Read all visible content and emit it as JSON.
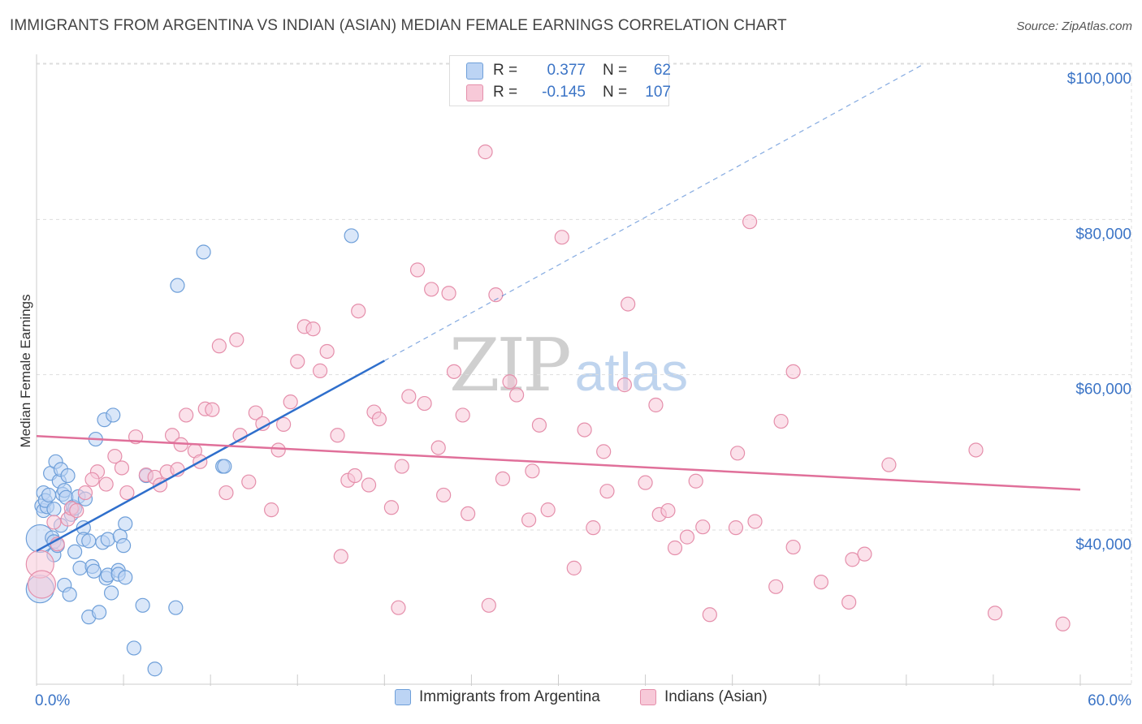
{
  "header": {
    "title": "IMMIGRANTS FROM ARGENTINA VS INDIAN (ASIAN) MEDIAN FEMALE EARNINGS CORRELATION CHART",
    "source": "Source: ZipAtlas.com"
  },
  "watermark": {
    "zip": "ZIP",
    "atlas": "atlas"
  },
  "correlation_legend": {
    "rows": [
      {
        "r_label": "R =",
        "r_value": "0.377",
        "n_label": "N =",
        "n_value": "62"
      },
      {
        "r_label": "R =",
        "r_value": "-0.145",
        "n_label": "N =",
        "n_value": "107"
      }
    ]
  },
  "colors": {
    "blue_fill": "#bcd4f4",
    "blue_stroke": "#6e9fd9",
    "blue_line": "#2f6fcc",
    "pink_fill": "#f7c9d8",
    "pink_stroke": "#e58fab",
    "pink_line": "#e0709a",
    "axis_text": "#3b74c6",
    "grid": "#dddddd"
  },
  "chart_data": {
    "type": "scatter",
    "title": "IMMIGRANTS FROM ARGENTINA VS INDIAN (ASIAN) MEDIAN FEMALE EARNINGS CORRELATION CHART",
    "xlabel": "",
    "ylabel": "Median Female Earnings",
    "xlim": [
      0,
      60
    ],
    "ylim": [
      20000,
      102000
    ],
    "x_tick_labels": [
      "0.0%",
      "60.0%"
    ],
    "y_ticks": [
      {
        "value": 40000,
        "label": "$40,000"
      },
      {
        "value": 60000,
        "label": "$60,000"
      },
      {
        "value": 80000,
        "label": "$80,000"
      },
      {
        "value": 100000,
        "label": "$100,000"
      }
    ],
    "series": [
      {
        "name": "Immigrants from Argentina",
        "color": "blue",
        "r": 0.377,
        "n": 62,
        "trend": {
          "x0": 0,
          "y0": 37300,
          "x1": 20,
          "y1": 61800,
          "dashed_to_x": 51,
          "dashed_to_y": 100000
        },
        "points": [
          [
            0.2,
            38900,
            "L"
          ],
          [
            0.2,
            32400,
            "L"
          ],
          [
            0.3,
            43100
          ],
          [
            0.4,
            42500
          ],
          [
            0.4,
            44800
          ],
          [
            0.6,
            43000
          ],
          [
            0.5,
            43800
          ],
          [
            0.7,
            44500
          ],
          [
            0.8,
            47300
          ],
          [
            0.9,
            39000
          ],
          [
            1.0,
            38500
          ],
          [
            1.0,
            36800
          ],
          [
            1.0,
            42700
          ],
          [
            1.1,
            48800
          ],
          [
            1.2,
            38000
          ],
          [
            1.3,
            46300
          ],
          [
            1.4,
            40600
          ],
          [
            1.4,
            47800
          ],
          [
            1.5,
            44600
          ],
          [
            1.6,
            45100
          ],
          [
            1.6,
            32900
          ],
          [
            1.7,
            44200
          ],
          [
            1.8,
            47000
          ],
          [
            1.9,
            31700
          ],
          [
            2.0,
            42000
          ],
          [
            2.1,
            43000
          ],
          [
            2.2,
            42800
          ],
          [
            2.2,
            37200
          ],
          [
            2.4,
            44300
          ],
          [
            2.5,
            35100
          ],
          [
            2.7,
            40300
          ],
          [
            2.7,
            38800
          ],
          [
            2.8,
            44000
          ],
          [
            3.0,
            28800
          ],
          [
            3.0,
            38600
          ],
          [
            3.2,
            35300
          ],
          [
            3.3,
            34700
          ],
          [
            3.4,
            51700
          ],
          [
            3.6,
            29400
          ],
          [
            3.8,
            38400
          ],
          [
            3.9,
            54200
          ],
          [
            4.0,
            33800
          ],
          [
            4.1,
            34200
          ],
          [
            4.1,
            38800
          ],
          [
            4.3,
            31900
          ],
          [
            4.4,
            54800
          ],
          [
            4.7,
            34800
          ],
          [
            4.7,
            34300
          ],
          [
            4.8,
            39200
          ],
          [
            5.0,
            38000
          ],
          [
            5.1,
            40800
          ],
          [
            5.1,
            33900
          ],
          [
            5.6,
            24800
          ],
          [
            6.1,
            30300
          ],
          [
            6.3,
            47000
          ],
          [
            6.8,
            22100
          ],
          [
            8.0,
            30000
          ],
          [
            8.1,
            71500
          ],
          [
            9.6,
            75800
          ],
          [
            10.7,
            48200
          ],
          [
            10.8,
            48200
          ],
          [
            18.1,
            77900
          ]
        ]
      },
      {
        "name": "Indians (Asian)",
        "color": "pink",
        "r": -0.145,
        "n": 107,
        "trend": {
          "x0": 0,
          "y0": 52100,
          "x1": 60,
          "y1": 45200
        },
        "points": [
          [
            0.2,
            35600,
            "L"
          ],
          [
            0.3,
            33000,
            "L"
          ],
          [
            1.0,
            41000
          ],
          [
            1.2,
            38200
          ],
          [
            1.8,
            41400
          ],
          [
            2.0,
            42800
          ],
          [
            2.3,
            42500
          ],
          [
            2.8,
            44800
          ],
          [
            3.5,
            47500
          ],
          [
            3.2,
            46500
          ],
          [
            4.0,
            45900
          ],
          [
            4.5,
            49500
          ],
          [
            4.9,
            48000
          ],
          [
            5.2,
            44800
          ],
          [
            5.7,
            52000
          ],
          [
            6.3,
            47100
          ],
          [
            6.8,
            46800
          ],
          [
            7.1,
            45800
          ],
          [
            7.5,
            47500
          ],
          [
            7.8,
            52200
          ],
          [
            8.1,
            47800
          ],
          [
            8.3,
            51000
          ],
          [
            8.6,
            54800
          ],
          [
            9.1,
            50200
          ],
          [
            9.4,
            48800
          ],
          [
            9.7,
            55600
          ],
          [
            10.1,
            55500
          ],
          [
            10.5,
            63700
          ],
          [
            10.9,
            44800
          ],
          [
            11.5,
            64500
          ],
          [
            11.7,
            52200
          ],
          [
            12.2,
            46200
          ],
          [
            12.6,
            55100
          ],
          [
            13.0,
            53700
          ],
          [
            13.5,
            42600
          ],
          [
            13.9,
            50300
          ],
          [
            14.2,
            53600
          ],
          [
            14.6,
            56500
          ],
          [
            15.0,
            61700
          ],
          [
            15.4,
            66200
          ],
          [
            15.9,
            65900
          ],
          [
            16.3,
            60500
          ],
          [
            16.7,
            63000
          ],
          [
            17.3,
            52200
          ],
          [
            17.5,
            36600
          ],
          [
            17.9,
            46400
          ],
          [
            18.3,
            47000
          ],
          [
            18.5,
            68200
          ],
          [
            19.1,
            45800
          ],
          [
            19.4,
            55200
          ],
          [
            19.7,
            54300
          ],
          [
            20.4,
            42900
          ],
          [
            20.8,
            30000
          ],
          [
            21.0,
            48200
          ],
          [
            21.4,
            57200
          ],
          [
            21.9,
            73500
          ],
          [
            22.3,
            56300
          ],
          [
            22.7,
            71000
          ],
          [
            23.1,
            50600
          ],
          [
            23.4,
            44500
          ],
          [
            23.7,
            70500
          ],
          [
            24.0,
            60400
          ],
          [
            24.5,
            54800
          ],
          [
            24.8,
            42100
          ],
          [
            25.8,
            88700
          ],
          [
            26.0,
            30300
          ],
          [
            26.4,
            70300
          ],
          [
            26.8,
            46600
          ],
          [
            27.2,
            59100
          ],
          [
            27.6,
            57400
          ],
          [
            28.3,
            41300
          ],
          [
            28.5,
            47600
          ],
          [
            28.9,
            53500
          ],
          [
            29.4,
            42600
          ],
          [
            30.2,
            77700
          ],
          [
            30.9,
            35100
          ],
          [
            31.5,
            52900
          ],
          [
            32.0,
            40300
          ],
          [
            32.6,
            50100
          ],
          [
            32.8,
            45000
          ],
          [
            34.0,
            69100
          ],
          [
            33.8,
            58700
          ],
          [
            35.0,
            46100
          ],
          [
            35.6,
            56100
          ],
          [
            35.8,
            42000
          ],
          [
            36.3,
            42500
          ],
          [
            36.7,
            37700
          ],
          [
            37.4,
            39100
          ],
          [
            37.9,
            46300
          ],
          [
            38.3,
            40400
          ],
          [
            38.7,
            29100
          ],
          [
            40.2,
            40300
          ],
          [
            40.3,
            49900
          ],
          [
            41.0,
            79700
          ],
          [
            41.3,
            41100
          ],
          [
            42.5,
            32700
          ],
          [
            42.8,
            54000
          ],
          [
            43.5,
            60400
          ],
          [
            43.5,
            37800
          ],
          [
            45.1,
            33300
          ],
          [
            46.7,
            30700
          ],
          [
            46.9,
            36200
          ],
          [
            47.6,
            36900
          ],
          [
            49.0,
            48400
          ],
          [
            54.0,
            50300
          ],
          [
            55.1,
            29300
          ],
          [
            59.0,
            27900
          ]
        ]
      }
    ],
    "legend": [
      "Immigrants from Argentina",
      "Indians (Asian)"
    ]
  }
}
